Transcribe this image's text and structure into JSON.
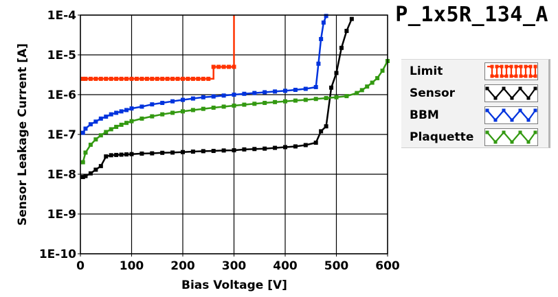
{
  "chart_data": {
    "type": "line",
    "title": "P_1x5R_134_A",
    "xlabel": "Bias Voltage [V]",
    "ylabel": "Sensor Leakage Current [A]",
    "xlim": [
      0,
      600
    ],
    "ylim": [
      1e-10,
      0.0001
    ],
    "yscale": "log",
    "grid": true,
    "legend_position": "right",
    "x_ticks": [
      0,
      100,
      200,
      300,
      400,
      500,
      600
    ],
    "x_tick_labels": [
      "0",
      "100",
      "200",
      "300",
      "400",
      "500",
      "600"
    ],
    "y_ticks": [
      1e-10,
      1e-09,
      1e-08,
      1e-07,
      1e-06,
      1e-05,
      0.0001
    ],
    "y_tick_labels": [
      "1E-10",
      "1E-9",
      "1E-8",
      "1E-7",
      "1E-6",
      "1E-5",
      "1E-4"
    ],
    "series": [
      {
        "name": "Limit",
        "color": "#ff3300",
        "step": true,
        "x": [
          5,
          10,
          20,
          30,
          40,
          50,
          60,
          70,
          80,
          90,
          100,
          110,
          120,
          130,
          140,
          150,
          160,
          170,
          180,
          190,
          200,
          210,
          220,
          230,
          240,
          250,
          260,
          270,
          280,
          290,
          300
        ],
        "y": [
          2.5e-06,
          2.5e-06,
          2.5e-06,
          2.5e-06,
          2.5e-06,
          2.5e-06,
          2.5e-06,
          2.5e-06,
          2.5e-06,
          2.5e-06,
          2.5e-06,
          2.5e-06,
          2.5e-06,
          2.5e-06,
          2.5e-06,
          2.5e-06,
          2.5e-06,
          2.5e-06,
          2.5e-06,
          2.5e-06,
          2.5e-06,
          2.5e-06,
          2.5e-06,
          2.5e-06,
          2.5e-06,
          2.5e-06,
          5e-06,
          5e-06,
          5e-06,
          5e-06,
          5e-06
        ],
        "tail": {
          "x": 300,
          "y": 0.0001
        }
      },
      {
        "name": "Sensor",
        "color": "#000000",
        "step": false,
        "x": [
          5,
          10,
          20,
          30,
          40,
          50,
          60,
          70,
          80,
          90,
          100,
          120,
          140,
          160,
          180,
          200,
          220,
          240,
          260,
          280,
          300,
          320,
          340,
          360,
          380,
          400,
          420,
          440,
          460,
          470,
          480,
          490,
          500,
          510,
          520,
          530
        ],
        "y": [
          8.5e-09,
          9e-09,
          1.05e-08,
          1.3e-08,
          1.6e-08,
          2.8e-08,
          3e-08,
          3.05e-08,
          3.1e-08,
          3.15e-08,
          3.2e-08,
          3.3e-08,
          3.35e-08,
          3.45e-08,
          3.5e-08,
          3.6e-08,
          3.7e-08,
          3.8e-08,
          3.85e-08,
          3.95e-08,
          4e-08,
          4.2e-08,
          4.3e-08,
          4.4e-08,
          4.6e-08,
          4.8e-08,
          5e-08,
          5.4e-08,
          6.2e-08,
          1.2e-07,
          1.6e-07,
          1.5e-06,
          3.5e-06,
          1.5e-05,
          4e-05,
          8e-05
        ]
      },
      {
        "name": "BBM",
        "color": "#0033dd",
        "step": false,
        "x": [
          5,
          10,
          20,
          30,
          40,
          50,
          60,
          70,
          80,
          90,
          100,
          120,
          140,
          160,
          180,
          200,
          220,
          240,
          260,
          280,
          300,
          320,
          340,
          360,
          380,
          400,
          420,
          440,
          460,
          465,
          470,
          475,
          480
        ],
        "y": [
          1.1e-07,
          1.4e-07,
          1.8e-07,
          2.1e-07,
          2.5e-07,
          2.8e-07,
          3.2e-07,
          3.5e-07,
          3.8e-07,
          4.1e-07,
          4.5e-07,
          5e-07,
          5.7e-07,
          6.2e-07,
          6.8e-07,
          7.4e-07,
          8e-07,
          8.6e-07,
          9e-07,
          9.5e-07,
          1e-06,
          1.05e-06,
          1.1e-06,
          1.15e-06,
          1.2e-06,
          1.25e-06,
          1.32e-06,
          1.4e-06,
          1.55e-06,
          6e-06,
          2.5e-05,
          6.5e-05,
          9.5e-05
        ]
      },
      {
        "name": "Plaquette",
        "color": "#339911",
        "step": false,
        "x": [
          5,
          10,
          20,
          30,
          40,
          50,
          60,
          70,
          80,
          90,
          100,
          120,
          140,
          160,
          180,
          200,
          220,
          240,
          260,
          280,
          300,
          320,
          340,
          360,
          380,
          400,
          420,
          440,
          460,
          480,
          500,
          520,
          540,
          550,
          560,
          570,
          580,
          590,
          600
        ],
        "y": [
          2e-08,
          3.5e-08,
          5.5e-08,
          7.5e-08,
          9.5e-08,
          1.15e-07,
          1.35e-07,
          1.55e-07,
          1.75e-07,
          1.95e-07,
          2.15e-07,
          2.5e-07,
          2.85e-07,
          3.2e-07,
          3.5e-07,
          3.8e-07,
          4.1e-07,
          4.4e-07,
          4.7e-07,
          5e-07,
          5.3e-07,
          5.6e-07,
          5.9e-07,
          6.2e-07,
          6.5e-07,
          6.8e-07,
          7.1e-07,
          7.4e-07,
          7.8e-07,
          8.2e-07,
          8.6e-07,
          9.2e-07,
          1.1e-06,
          1.3e-06,
          1.6e-06,
          2e-06,
          2.6e-06,
          4e-06,
          7e-06
        ]
      }
    ]
  }
}
